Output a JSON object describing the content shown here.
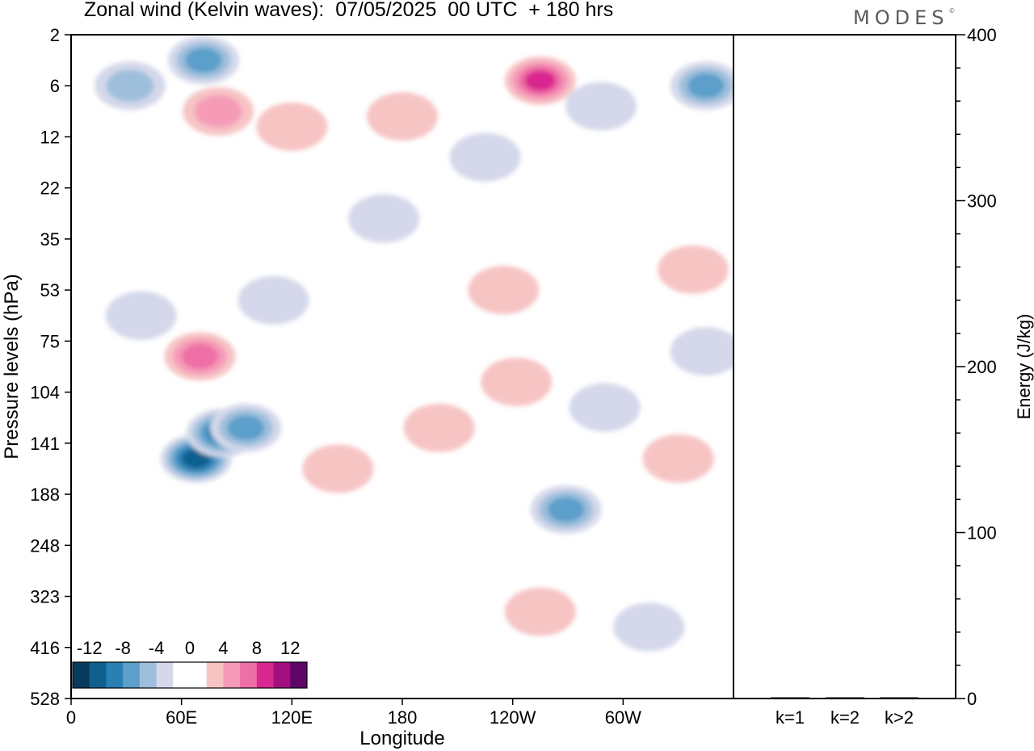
{
  "header": {
    "title": "Zonal wind (Kelvin waves):  07/05/2025  00 UTC  + 180 hrs",
    "brand": "MODES",
    "brand_mark": "©"
  },
  "chart_data": [
    {
      "type": "heatmap",
      "title": "Zonal wind (Kelvin waves):  07/05/2025  00 UTC  + 180 hrs",
      "xlabel": "Longitude",
      "ylabel": "Pressure levels (hPa)",
      "x_ticks": [
        "0",
        "60E",
        "120E",
        "180",
        "120W",
        "60W"
      ],
      "x_tick_values": [
        0,
        60,
        120,
        180,
        240,
        300
      ],
      "xlim": [
        0,
        360
      ],
      "y_ticks": [
        "2",
        "6",
        "12",
        "22",
        "35",
        "53",
        "75",
        "104",
        "141",
        "188",
        "248",
        "323",
        "416",
        "528"
      ],
      "y_scale": "level index (top = 2 hPa, bottom = 528 hPa)",
      "colorbar": {
        "labels": [
          "-12",
          "-8",
          "-4",
          "0",
          "4",
          "8",
          "12"
        ],
        "colors": [
          "#073b5c",
          "#0f5f8f",
          "#2a7fb3",
          "#5b9fca",
          "#9ebfdc",
          "#d4d8ea",
          "#ffffff",
          "#ffffff",
          "#f7c4c4",
          "#f59bb8",
          "#ee6fa6",
          "#d9278f",
          "#a20f7e",
          "#5e0567"
        ],
        "placement": "bottom-left"
      },
      "anomalies": [
        {
          "lon": 72,
          "lev": 0.5,
          "value": -7
        },
        {
          "lon": 32,
          "lev": 1.0,
          "value": -5
        },
        {
          "lon": 255,
          "lev": 0.9,
          "value": 8
        },
        {
          "lon": 345,
          "lev": 1.0,
          "value": -6
        },
        {
          "lon": 80,
          "lev": 1.5,
          "value": 4
        },
        {
          "lon": 120,
          "lev": 1.8,
          "value": 3
        },
        {
          "lon": 180,
          "lev": 1.6,
          "value": 3
        },
        {
          "lon": 288,
          "lev": 1.4,
          "value": -3
        },
        {
          "lon": 225,
          "lev": 2.4,
          "value": -3
        },
        {
          "lon": 170,
          "lev": 3.6,
          "value": -3
        },
        {
          "lon": 38,
          "lev": 5.5,
          "value": -3
        },
        {
          "lon": 110,
          "lev": 5.2,
          "value": -3
        },
        {
          "lon": 235,
          "lev": 5.0,
          "value": 3
        },
        {
          "lon": 338,
          "lev": 4.6,
          "value": 3
        },
        {
          "lon": 345,
          "lev": 6.2,
          "value": -3
        },
        {
          "lon": 70,
          "lev": 6.3,
          "value": 6
        },
        {
          "lon": 68,
          "lev": 8.3,
          "value": -11
        },
        {
          "lon": 82,
          "lev": 7.8,
          "value": -9
        },
        {
          "lon": 95,
          "lev": 7.7,
          "value": -6
        },
        {
          "lon": 145,
          "lev": 8.5,
          "value": 3
        },
        {
          "lon": 200,
          "lev": 7.7,
          "value": 3
        },
        {
          "lon": 242,
          "lev": 6.8,
          "value": 3
        },
        {
          "lon": 290,
          "lev": 7.3,
          "value": -2.5
        },
        {
          "lon": 330,
          "lev": 8.3,
          "value": 3
        },
        {
          "lon": 269,
          "lev": 9.3,
          "value": -6
        },
        {
          "lon": 255,
          "lev": 11.3,
          "value": 3
        },
        {
          "lon": 314,
          "lev": 11.6,
          "value": -2.5
        }
      ]
    },
    {
      "type": "bar",
      "categories": [
        "k=1",
        "k=2",
        "k>2"
      ],
      "values": [
        0.5,
        0.3,
        0.3
      ],
      "ylabel": "Energy (J/kg)",
      "ylim": [
        0,
        400
      ],
      "y_ticks": [
        0,
        100,
        200,
        300,
        400
      ]
    }
  ]
}
